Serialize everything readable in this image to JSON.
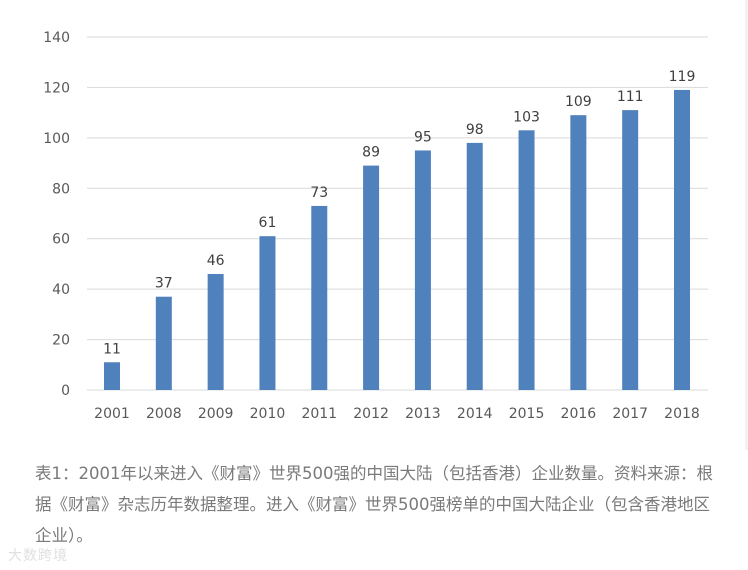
{
  "chart_data": {
    "type": "bar",
    "title": "",
    "xlabel": "",
    "ylabel": "",
    "categories": [
      "2001",
      "2008",
      "2009",
      "2010",
      "2011",
      "2012",
      "2013",
      "2014",
      "2015",
      "2016",
      "2017",
      "2018"
    ],
    "values": [
      11,
      37,
      46,
      61,
      73,
      89,
      95,
      98,
      103,
      109,
      111,
      119
    ],
    "ylim": [
      0,
      140
    ],
    "yticks": [
      0,
      20,
      40,
      60,
      80,
      100,
      120,
      140
    ],
    "grid": true,
    "bar_color": "#4f81bd",
    "data_labels": true
  },
  "caption": "表1：2001年以来进入《财富》世界500强的中国大陆（包括香港）企业数量。资料来源：根据《财富》杂志历年数据整理。进入《财富》世界500强榜单的中国大陆企业（包含香港地区企业）。",
  "watermark": "大数跨境"
}
